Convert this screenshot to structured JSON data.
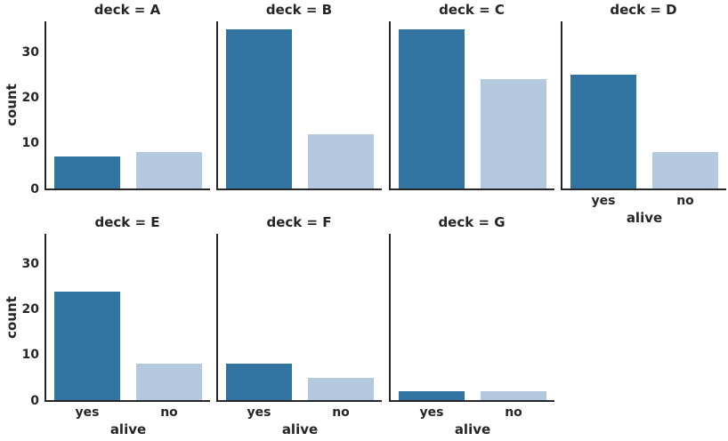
{
  "chart_data": {
    "type": "bar",
    "title": "",
    "facet_variable": "deck",
    "xlabel": "alive",
    "ylabel": "count",
    "categories": [
      "yes",
      "no"
    ],
    "yticks": [
      "0",
      "10",
      "20",
      "30"
    ],
    "ylim": [
      0,
      36.75
    ],
    "grid": false,
    "legend": "none",
    "bar_colors": [
      "#3274a1",
      "#b4c9e0"
    ],
    "text_color": "#262626",
    "spine_color": "#262626",
    "facets": [
      {
        "deck": "A",
        "title": "deck = A",
        "values": [
          7,
          8
        ]
      },
      {
        "deck": "B",
        "title": "deck = B",
        "values": [
          35,
          12
        ]
      },
      {
        "deck": "C",
        "title": "deck = C",
        "values": [
          35,
          24
        ]
      },
      {
        "deck": "D",
        "title": "deck = D",
        "values": [
          25,
          8
        ]
      },
      {
        "deck": "E",
        "title": "deck = E",
        "values": [
          24,
          8
        ]
      },
      {
        "deck": "F",
        "title": "deck = F",
        "values": [
          8,
          5
        ]
      },
      {
        "deck": "G",
        "title": "deck = G",
        "values": [
          2,
          2
        ]
      }
    ]
  }
}
